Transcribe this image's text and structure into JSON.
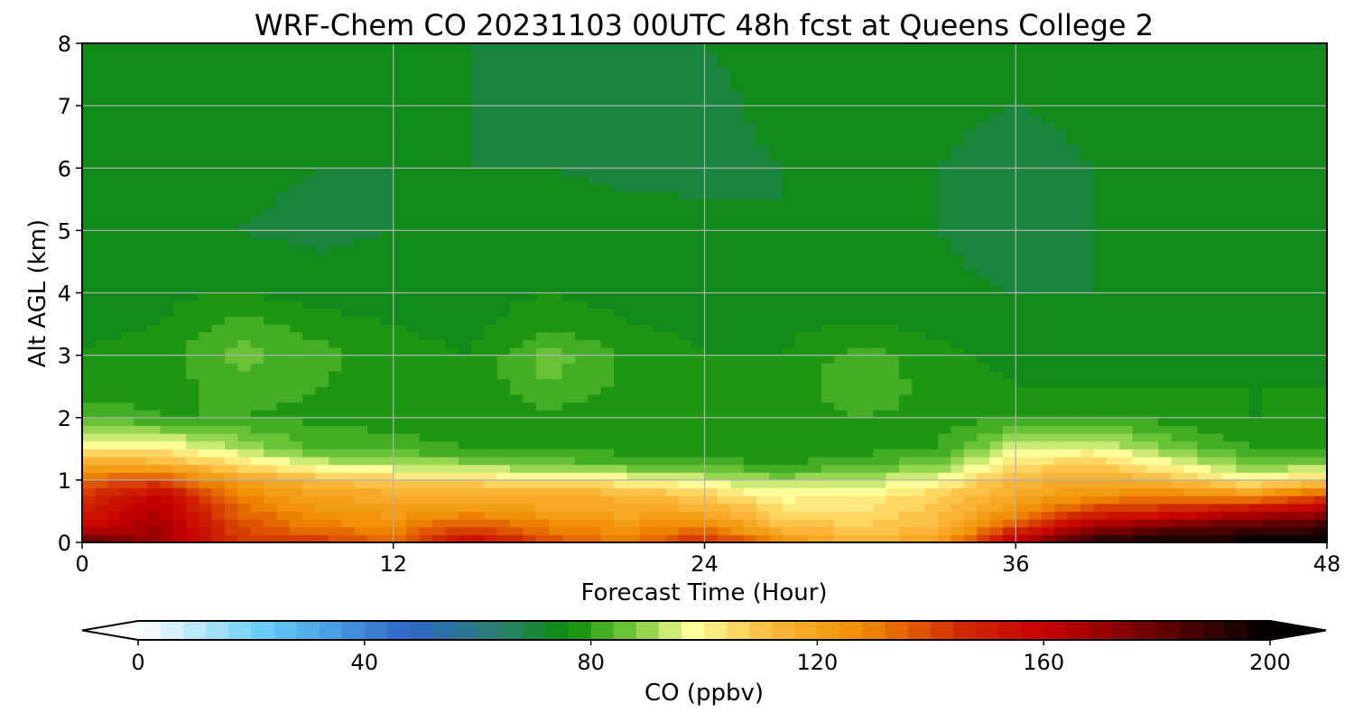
{
  "chart_data": {
    "type": "heatmap",
    "title": "WRF-Chem CO  20231103 00UTC 48h fcst at Queens College 2",
    "xlabel": "Forecast Time (Hour)",
    "ylabel": "Alt AGL (km)",
    "xlim": [
      0,
      48
    ],
    "ylim": [
      0,
      8
    ],
    "x_ticks": [
      0,
      12,
      24,
      36,
      48
    ],
    "y_ticks": [
      0,
      1,
      2,
      3,
      4,
      5,
      6,
      7,
      8
    ],
    "grid": true,
    "colorbar": {
      "label": "CO  (ppbv)",
      "range": [
        0,
        200
      ],
      "ticks": [
        0,
        40,
        80,
        120,
        160,
        200
      ],
      "extend": "both",
      "levels": 50,
      "colormap": [
        {
          "v": 0,
          "c": "#ffffff"
        },
        {
          "v": 24,
          "c": "#5ec8f5"
        },
        {
          "v": 48,
          "c": "#2f64c8"
        },
        {
          "v": 64,
          "c": "#2a8070"
        },
        {
          "v": 76,
          "c": "#0a8c0a"
        },
        {
          "v": 88,
          "c": "#7ccd3c"
        },
        {
          "v": 98,
          "c": "#ffff9a"
        },
        {
          "v": 112,
          "c": "#fbb83c"
        },
        {
          "v": 128,
          "c": "#f08c00"
        },
        {
          "v": 146,
          "c": "#d02800"
        },
        {
          "v": 160,
          "c": "#c80000"
        },
        {
          "v": 180,
          "c": "#6a0000"
        },
        {
          "v": 200,
          "c": "#000000"
        }
      ]
    },
    "x_hours": [
      0,
      3,
      6,
      9,
      12,
      15,
      18,
      21,
      24,
      27,
      30,
      33,
      36,
      39,
      42,
      45,
      48
    ],
    "y_km": [
      0,
      0.25,
      0.5,
      0.75,
      1.0,
      1.25,
      1.5,
      2.0,
      2.5,
      3.0,
      3.5,
      4.0,
      5.0,
      6.0,
      7.0,
      8.0
    ],
    "z_ppbv": [
      [
        185,
        170,
        145,
        145,
        135,
        160,
        140,
        130,
        150,
        128,
        115,
        120,
        168,
        195,
        200,
        200,
        200
      ],
      [
        160,
        168,
        140,
        130,
        128,
        140,
        130,
        125,
        130,
        112,
        108,
        112,
        140,
        170,
        180,
        185,
        190
      ],
      [
        150,
        165,
        135,
        125,
        122,
        125,
        120,
        118,
        118,
        105,
        104,
        110,
        125,
        145,
        150,
        160,
        168
      ],
      [
        145,
        160,
        130,
        120,
        118,
        118,
        118,
        115,
        108,
        98,
        100,
        108,
        118,
        125,
        130,
        125,
        140
      ],
      [
        135,
        140,
        120,
        112,
        108,
        105,
        102,
        100,
        95,
        90,
        92,
        98,
        112,
        118,
        112,
        100,
        108
      ],
      [
        118,
        115,
        105,
        95,
        92,
        90,
        86,
        84,
        82,
        80,
        84,
        88,
        105,
        108,
        98,
        88,
        88
      ],
      [
        100,
        102,
        92,
        84,
        82,
        80,
        80,
        78,
        77,
        76,
        78,
        80,
        95,
        98,
        88,
        80,
        78
      ],
      [
        84,
        80,
        80,
        79,
        78,
        78,
        78,
        77,
        76,
        76,
        80,
        78,
        80,
        80,
        78,
        76,
        76
      ],
      [
        77,
        78,
        82,
        80,
        78,
        77,
        84,
        79,
        76,
        77,
        84,
        78,
        76,
        76,
        76,
        76,
        76
      ],
      [
        76,
        78,
        86,
        82,
        77,
        76,
        86,
        79,
        76,
        76,
        82,
        77,
        75,
        75,
        75,
        75,
        75
      ],
      [
        75,
        76,
        82,
        78,
        76,
        75,
        78,
        76,
        75,
        75,
        76,
        75,
        74,
        74,
        74,
        74,
        74
      ],
      [
        74,
        75,
        76,
        74,
        74,
        75,
        76,
        75,
        74,
        73,
        73,
        73,
        72,
        72,
        72,
        73,
        74
      ],
      [
        73,
        72,
        72,
        71,
        72,
        74,
        74,
        74,
        73,
        72,
        72,
        72,
        70,
        72,
        73,
        74,
        75
      ],
      [
        73,
        73,
        73,
        72,
        72,
        72,
        72,
        71,
        71,
        72,
        73,
        72,
        70,
        72,
        73,
        74,
        75
      ],
      [
        74,
        74,
        74,
        73,
        73,
        72,
        71,
        70,
        71,
        73,
        73,
        73,
        72,
        73,
        74,
        75,
        76
      ],
      [
        75,
        75,
        75,
        73,
        73,
        72,
        71,
        71,
        72,
        73,
        74,
        74,
        74,
        75,
        75,
        75,
        76
      ]
    ]
  }
}
